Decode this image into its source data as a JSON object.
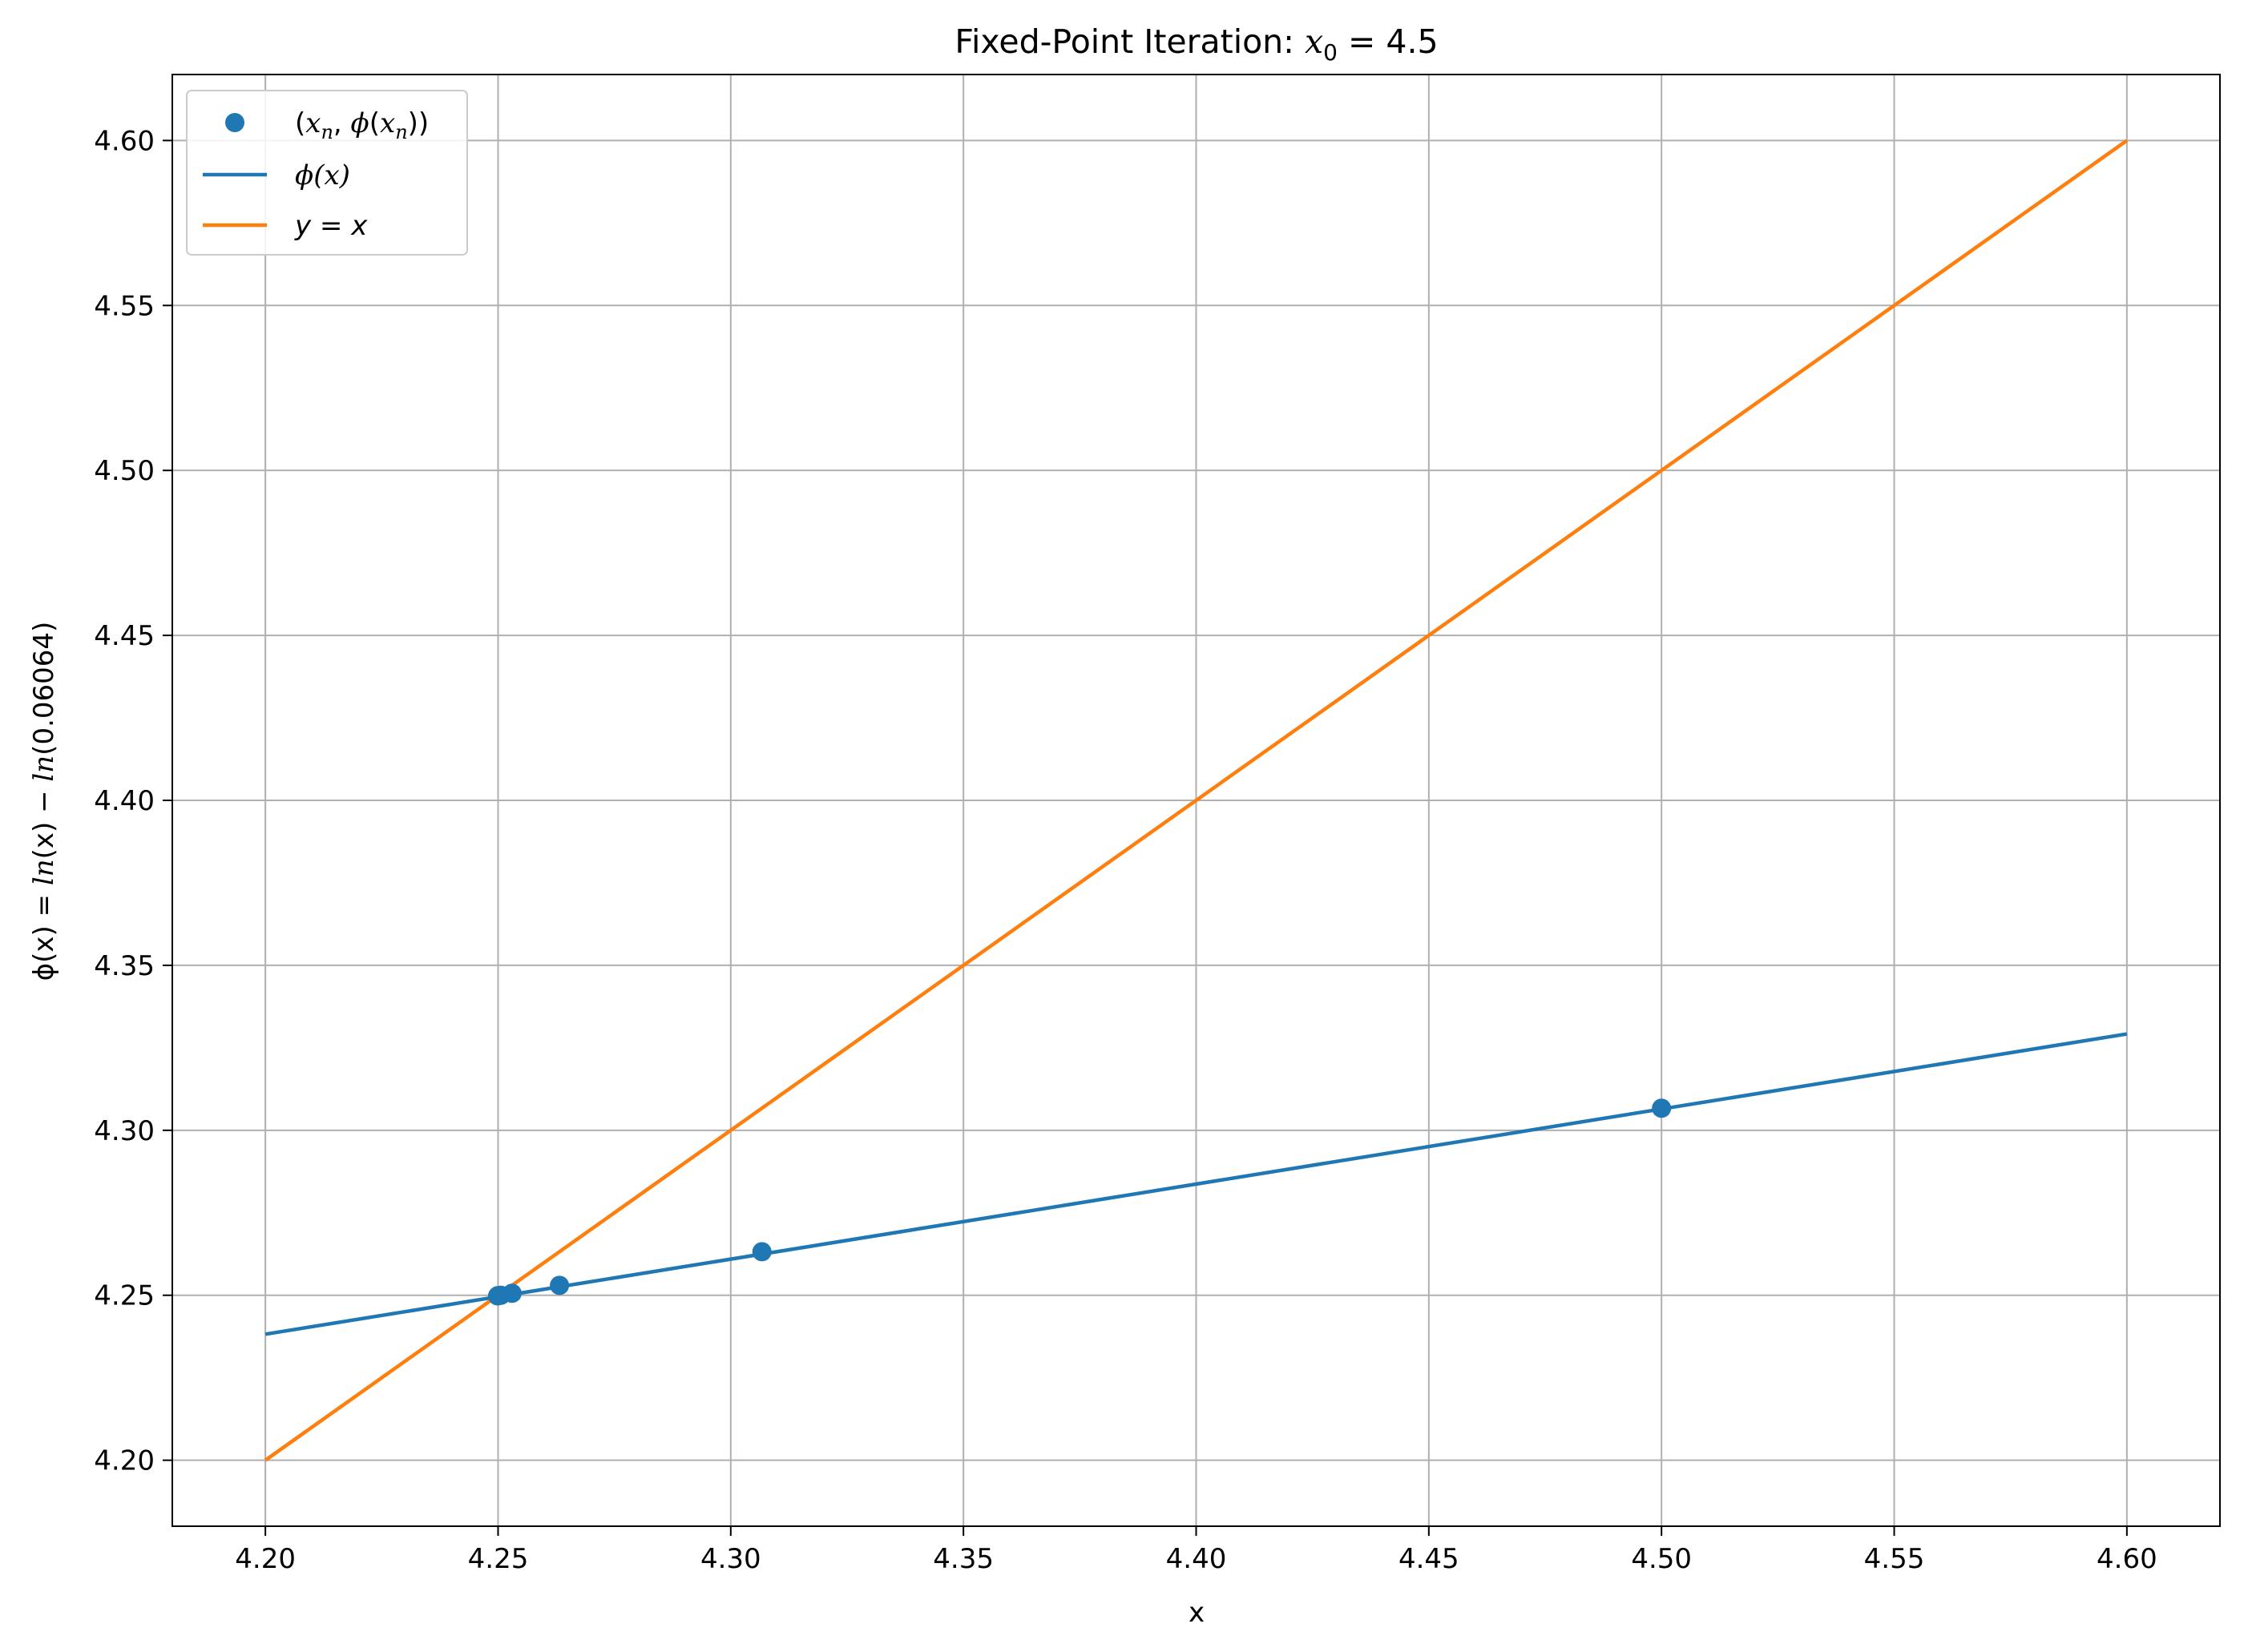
{
  "chart_data": {
    "type": "line",
    "title": {
      "prefix": "Fixed-Point Iteration: ",
      "var": "x",
      "sub": "0",
      "suffix": " = 4.5"
    },
    "xlabel": "x",
    "ylabel": {
      "pre": "ϕ(x) = ",
      "ln1": "ln",
      "mid": "(x) − ",
      "ln2": "ln",
      "post": "(0.06064)"
    },
    "xlim": [
      4.18,
      4.62
    ],
    "ylim": [
      4.18,
      4.62
    ],
    "xticks": [
      "4.20",
      "4.25",
      "4.30",
      "4.35",
      "4.40",
      "4.45",
      "4.50",
      "4.55",
      "4.60"
    ],
    "yticks": [
      "4.20",
      "4.25",
      "4.30",
      "4.35",
      "4.40",
      "4.45",
      "4.50",
      "4.55",
      "4.60"
    ],
    "grid": true,
    "legend_position": "top-left",
    "colors": {
      "phi": "#1f77b4",
      "identity": "#ff7f0e",
      "grid": "#b0b0b0"
    },
    "series": [
      {
        "kind": "scatter",
        "legend": {
          "open": "(",
          "x": "x",
          "xsub": "n",
          "comma": ", ",
          "phi": "ϕ",
          "p1": "(",
          "x2": "x",
          "x2sub": "n",
          "close": "))"
        },
        "x": [
          4.5,
          4.3067,
          4.2632,
          4.253,
          4.2506,
          4.25,
          4.2499
        ],
        "y": [
          4.3067,
          4.2632,
          4.253,
          4.2506,
          4.25,
          4.2499,
          4.2498
        ]
      },
      {
        "kind": "line",
        "legend": {
          "phi": "ϕ",
          "p": "(x)"
        },
        "function": "ln(x) - ln(0.06064)",
        "x": [
          4.2,
          4.6
        ],
        "y": [
          4.2382,
          4.3292
        ]
      },
      {
        "kind": "line",
        "legend": {
          "expr": "y = x"
        },
        "x": [
          4.2,
          4.6
        ],
        "y": [
          4.2,
          4.6
        ]
      }
    ]
  }
}
